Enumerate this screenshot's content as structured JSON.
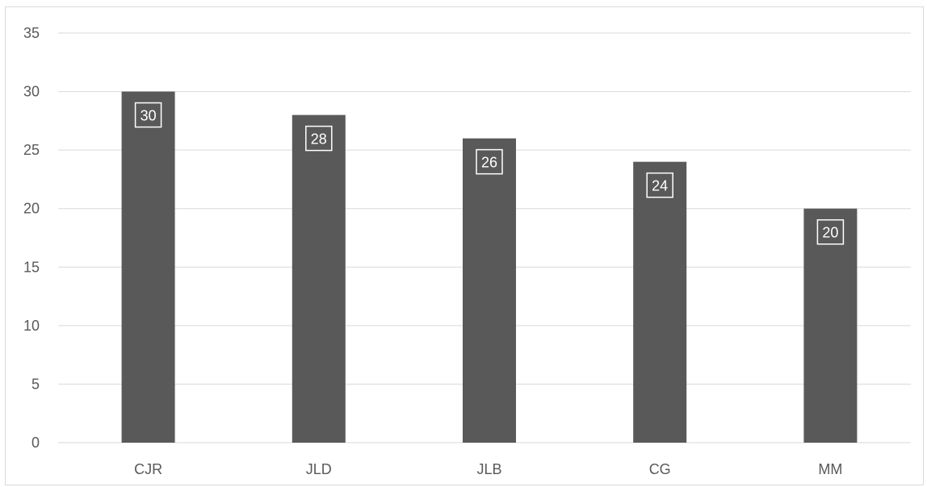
{
  "chart_data": {
    "type": "bar",
    "categories": [
      "CJR",
      "JLD",
      "JLB",
      "CG",
      "MM"
    ],
    "values": [
      30,
      28,
      26,
      24,
      20
    ],
    "title": "",
    "xlabel": "",
    "ylabel": "",
    "ylim": [
      0,
      35
    ],
    "yticks": [
      0,
      5,
      10,
      15,
      20,
      25,
      30,
      35
    ],
    "grid": true,
    "legend": "none",
    "data_labels": true,
    "colors": {
      "bar": "#595959",
      "grid": "#d9d9d9",
      "text": "#595959",
      "label_text": "#ffffff"
    }
  }
}
